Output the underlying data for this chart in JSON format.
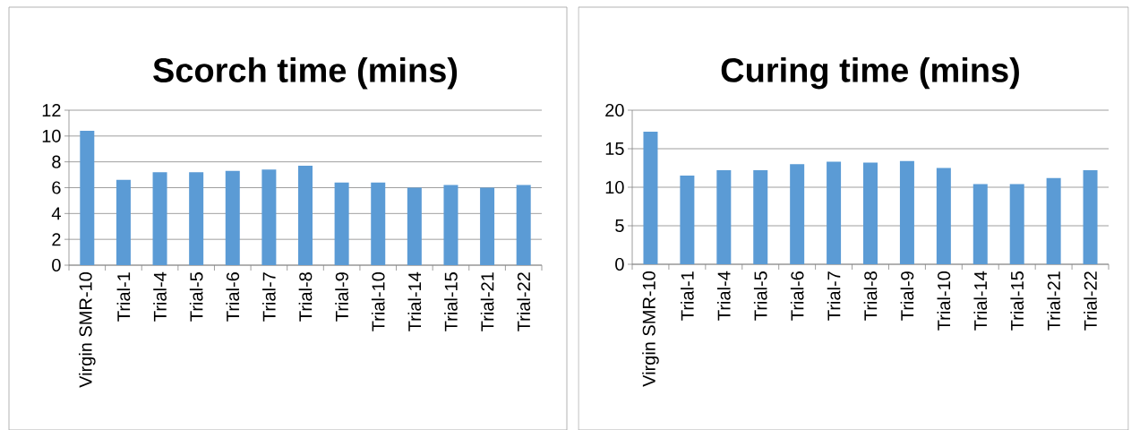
{
  "chart_data": [
    {
      "type": "bar",
      "title": "Scorch time (mins)",
      "categories": [
        "Virgin SMR-10",
        "Trial-1",
        "Trial-4",
        "Trial-5",
        "Trial-6",
        "Trial-7",
        "Trial-8",
        "Trial-9",
        "Trial-10",
        "Trial-14",
        "Trial-15",
        "Trial-21",
        "Trial-22"
      ],
      "values": [
        10.4,
        6.6,
        7.2,
        7.2,
        7.3,
        7.4,
        7.7,
        6.4,
        6.4,
        6.0,
        6.2,
        6.0,
        6.2
      ],
      "color": "#5b9bd5",
      "ylim": [
        0,
        12
      ],
      "yticks": [
        0,
        2,
        4,
        6,
        8,
        10,
        12
      ],
      "grid": "y"
    },
    {
      "type": "bar",
      "title": "Curing time (mins)",
      "categories": [
        "Virgin SMR-10",
        "Trial-1",
        "Trial-4",
        "Trial-5",
        "Trial-6",
        "Trial-7",
        "Trial-8",
        "Trial-9",
        "Trial-10",
        "Trial-14",
        "Trial-15",
        "Trial-21",
        "Trial-22"
      ],
      "values": [
        17.2,
        11.5,
        12.2,
        12.2,
        13.0,
        13.3,
        13.2,
        13.4,
        12.5,
        10.4,
        10.4,
        11.2,
        12.2
      ],
      "color": "#5b9bd5",
      "ylim": [
        0,
        20
      ],
      "yticks": [
        0,
        5,
        10,
        15,
        20
      ],
      "grid": "y"
    }
  ]
}
